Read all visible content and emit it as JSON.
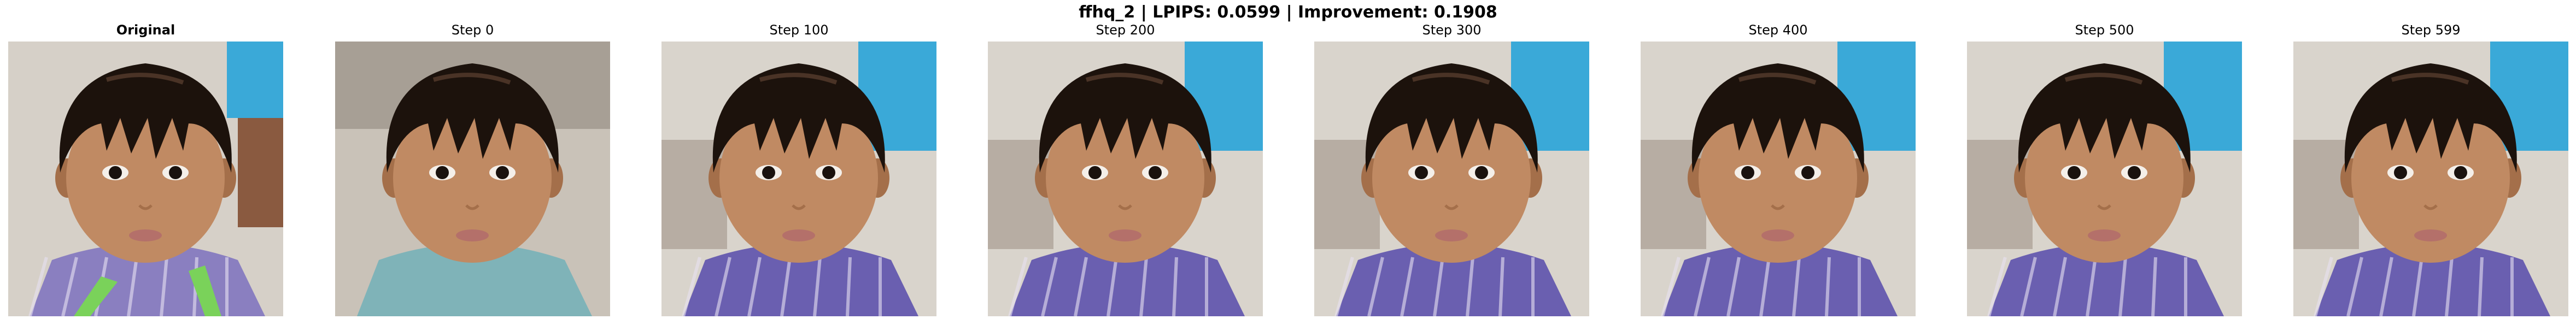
{
  "figure": {
    "title": "ffhq_2 | LPIPS: 0.0599 | Improvement: 0.1908"
  },
  "panels": [
    {
      "title": "Original",
      "bold": true,
      "background": "original",
      "shirt": "plaid-green"
    },
    {
      "title": "Step 0",
      "bold": false,
      "background": "stone",
      "shirt": "teal"
    },
    {
      "title": "Step 100",
      "bold": false,
      "background": "blue",
      "shirt": "plaid-purple"
    },
    {
      "title": "Step 200",
      "bold": false,
      "background": "blue",
      "shirt": "plaid-purple"
    },
    {
      "title": "Step 300",
      "bold": false,
      "background": "blue",
      "shirt": "plaid-purple"
    },
    {
      "title": "Step 400",
      "bold": false,
      "background": "blue",
      "shirt": "plaid-purple"
    },
    {
      "title": "Step 500",
      "bold": false,
      "background": "blue",
      "shirt": "plaid-purple"
    },
    {
      "title": "Step 599",
      "bold": false,
      "background": "blue",
      "shirt": "plaid-purple"
    }
  ],
  "colors": {
    "skin": "#c08a63",
    "skin_shadow": "#a46f4a",
    "hair": "#1c120c",
    "hair_highlight": "#4a3326",
    "lips": "#b4706a",
    "bg_stone": "#c9c2b8",
    "bg_blue": "#3aa9d8",
    "shirt_teal": "#7fb3b8",
    "shirt_purple": "#6a5fb0",
    "shirt_green": "#7ad25a"
  }
}
